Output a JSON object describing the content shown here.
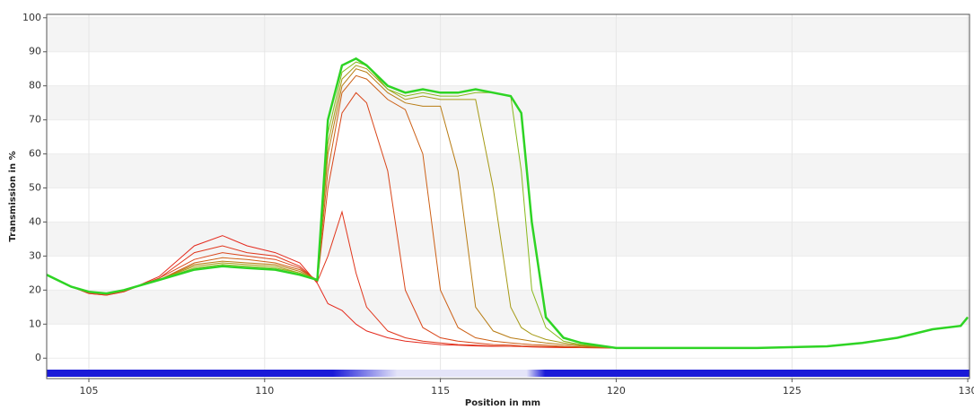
{
  "chart_data": {
    "type": "line",
    "x_label": "Position in mm",
    "y_label": "Transmission in %",
    "xlim": [
      103.8,
      130.05
    ],
    "ylim": [
      -6,
      101
    ],
    "xticks": [
      105,
      110,
      115,
      120,
      125,
      130
    ],
    "yticks": [
      0,
      10,
      20,
      30,
      40,
      50,
      60,
      70,
      80,
      90,
      100
    ],
    "grid": true,
    "x": [
      103.8,
      104.5,
      105,
      105.5,
      106,
      107,
      108,
      108.8,
      109.5,
      110.3,
      111,
      111.5,
      111.8,
      112.2,
      112.6,
      112.9,
      113.5,
      114,
      114.5,
      115,
      115.5,
      116,
      116.5,
      117,
      117.3,
      117.6,
      118,
      118.5,
      119,
      120,
      122,
      124,
      126,
      127,
      128,
      129,
      129.8,
      130
    ],
    "series": [
      {
        "color": "#e42a1e",
        "values": [
          24.5,
          21,
          19,
          18.5,
          19.5,
          24,
          33,
          36,
          33,
          31,
          28,
          22,
          16,
          14,
          10,
          8,
          6,
          5,
          4.5,
          4,
          3.8,
          3.6,
          3.5,
          3.5,
          3.4,
          3.3,
          3.2,
          3.1,
          3.1,
          3,
          3,
          3,
          3.5,
          4.5,
          6,
          8.5,
          9.5,
          12
        ]
      },
      {
        "color": "#e0361c",
        "values": [
          24.5,
          21,
          19,
          18.5,
          19.5,
          23.5,
          31,
          33,
          31,
          30,
          27,
          22.5,
          30,
          43,
          25,
          15,
          8,
          6,
          5,
          4.5,
          4,
          3.8,
          3.6,
          3.5,
          3.5,
          3.4,
          3.3,
          3.2,
          3.1,
          3,
          3,
          3,
          3.5,
          4.5,
          6,
          8.5,
          9.5,
          12
        ]
      },
      {
        "color": "#d9461a",
        "values": [
          24.5,
          21,
          19.3,
          18.8,
          19.8,
          23.5,
          29,
          31,
          30,
          29,
          26.5,
          22.5,
          50,
          72,
          78,
          75,
          55,
          20,
          9,
          6,
          5,
          4.5,
          4,
          3.8,
          3.6,
          3.5,
          3.4,
          3.3,
          3.2,
          3,
          3,
          3,
          3.5,
          4.5,
          6,
          8.5,
          9.5,
          12
        ]
      },
      {
        "color": "#cc6016",
        "values": [
          24.5,
          21,
          19.3,
          19,
          20,
          23,
          28,
          29.5,
          29,
          28,
          26,
          23,
          55,
          78,
          83,
          82,
          76,
          73,
          60,
          20,
          9,
          6,
          5,
          4.5,
          4.2,
          4,
          3.8,
          3.5,
          3.3,
          3,
          3,
          3,
          3.5,
          4.5,
          6,
          8.5,
          9.5,
          12
        ]
      },
      {
        "color": "#b87c14",
        "values": [
          24.5,
          21,
          19.5,
          19,
          20,
          23,
          27.5,
          28.5,
          28,
          27.5,
          25.5,
          23,
          60,
          80,
          85,
          84,
          78,
          75,
          74,
          74,
          55,
          15,
          8,
          6,
          5.5,
          5,
          4.5,
          4,
          3.6,
          3,
          3,
          3,
          3.5,
          4.5,
          6,
          8.5,
          9.5,
          12
        ]
      },
      {
        "color": "#a69a16",
        "values": [
          24.5,
          21,
          19.5,
          19,
          20,
          23,
          27,
          28,
          27.5,
          27,
          25,
          23,
          63,
          82,
          86,
          85,
          79,
          76,
          77,
          76,
          76,
          76,
          50,
          15,
          9,
          7,
          5.5,
          4.5,
          3.8,
          3,
          3,
          3,
          3.5,
          4.5,
          6,
          8.5,
          9.5,
          12
        ]
      },
      {
        "color": "#88b81c",
        "values": [
          24.5,
          21,
          19.5,
          19,
          20,
          23,
          26.5,
          27.5,
          27,
          26.5,
          25,
          23,
          66,
          84,
          87,
          86,
          79,
          77,
          78,
          77,
          77,
          78,
          78,
          77,
          55,
          20,
          9,
          5,
          4,
          3,
          3,
          3,
          3.5,
          4.5,
          6,
          8.5,
          9.5,
          12
        ]
      },
      {
        "color": "#2ed424",
        "values": [
          24.5,
          21,
          19.5,
          19,
          20,
          23,
          26,
          27,
          26.5,
          26,
          24.5,
          23,
          70,
          86,
          88,
          86,
          80,
          78,
          79,
          78,
          78,
          79,
          78,
          77,
          72,
          40,
          12,
          6,
          4.5,
          3,
          3,
          3,
          3.5,
          4.5,
          6,
          8.5,
          9.5,
          12
        ]
      }
    ]
  }
}
